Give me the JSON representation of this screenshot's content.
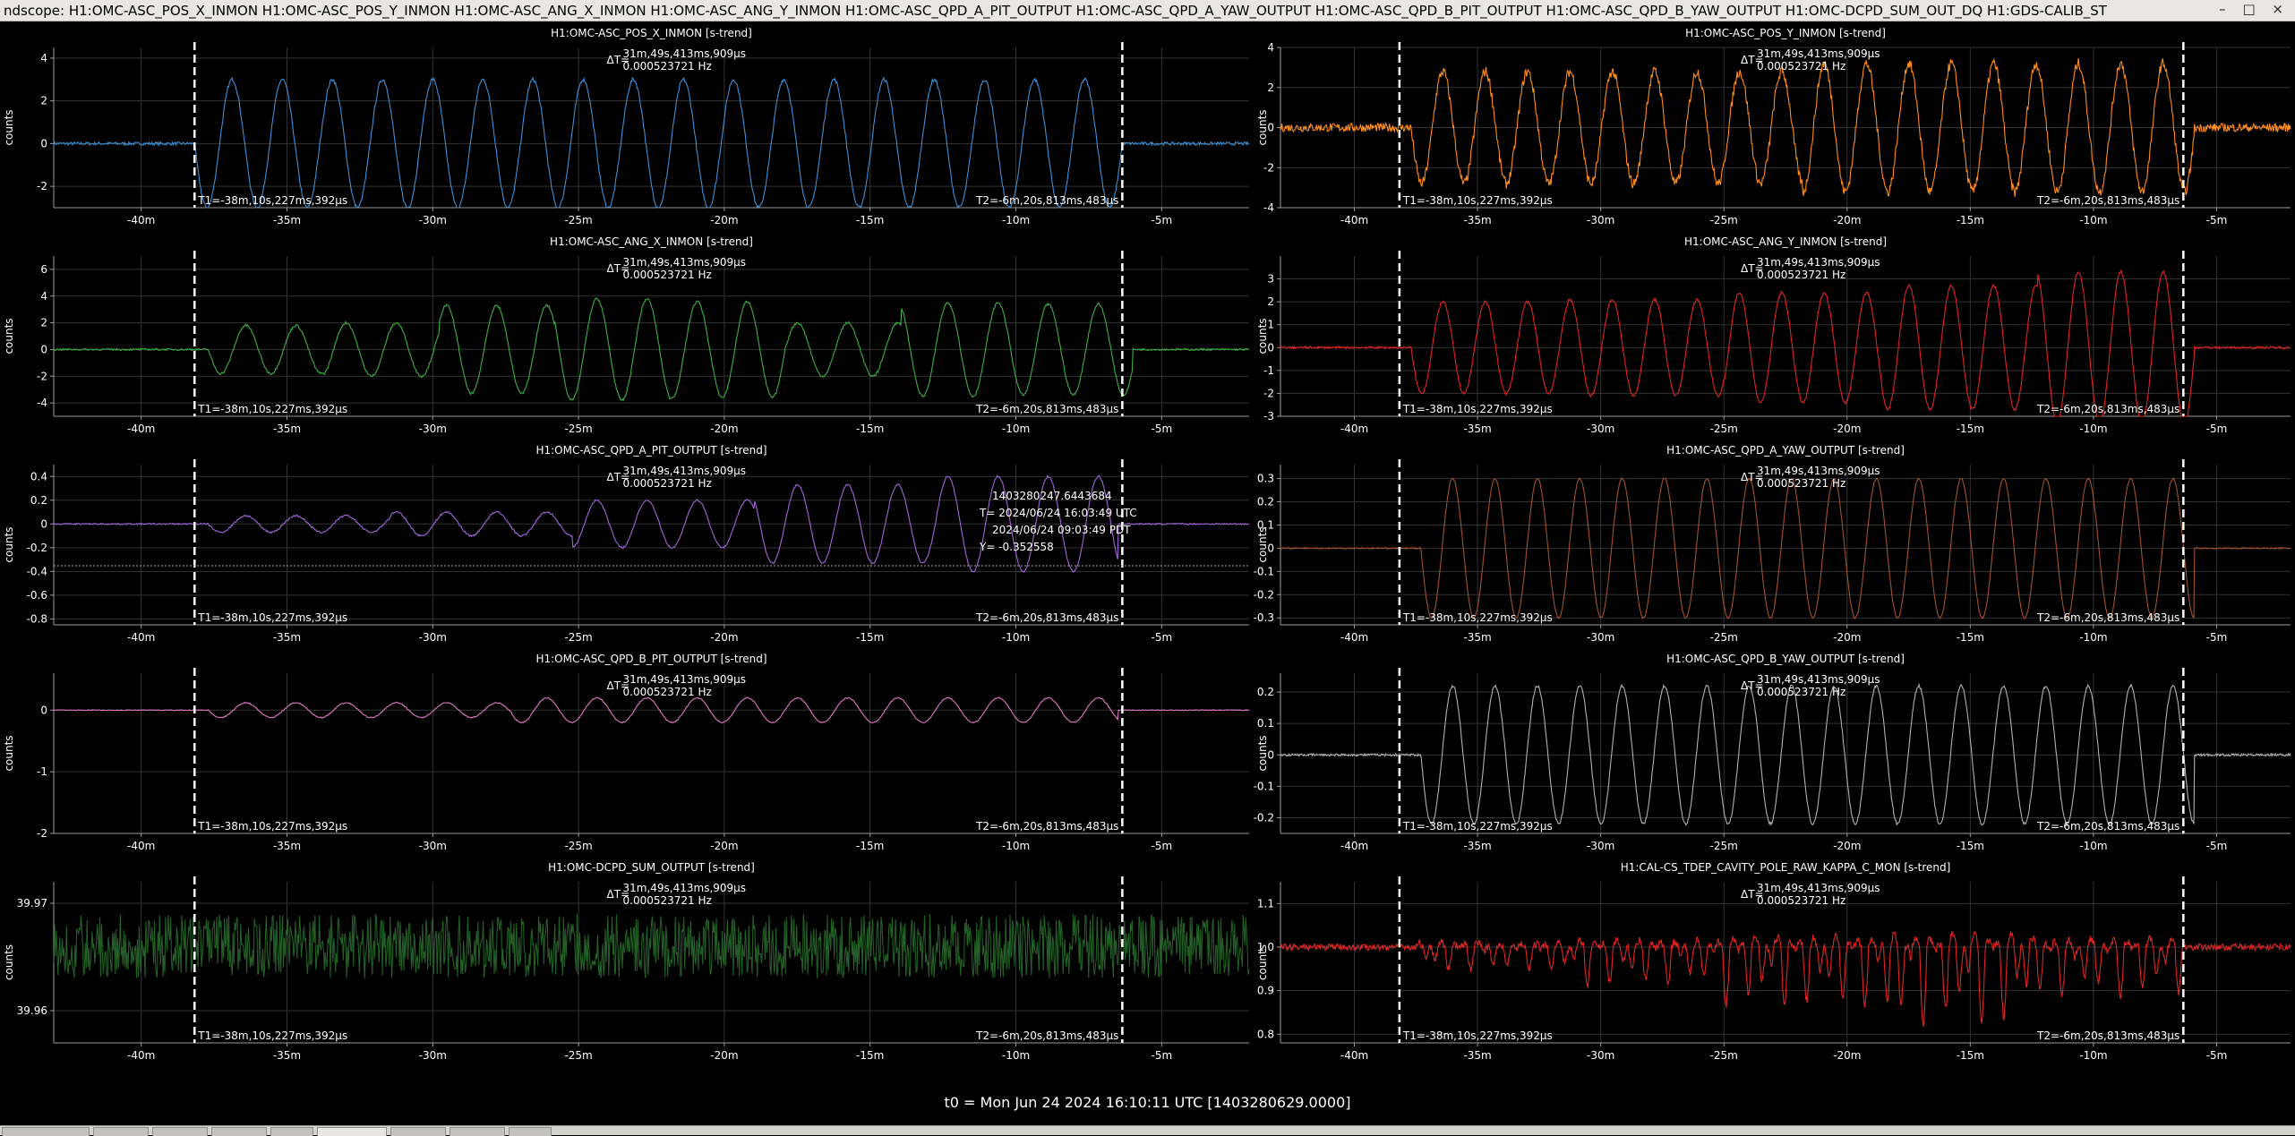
{
  "window": {
    "title": "ndscope: H1:OMC-ASC_POS_X_INMON H1:OMC-ASC_POS_Y_INMON H1:OMC-ASC_ANG_X_INMON H1:OMC-ASC_ANG_Y_INMON H1:OMC-ASC_QPD_A_PIT_OUTPUT H1:OMC-ASC_QPD_A_YAW_OUTPUT H1:OMC-ASC_QPD_B_PIT_OUTPUT H1:OMC-ASC_QPD_B_YAW_OUTPUT H1:OMC-DCPD_SUM_OUT_DQ H1:GDS-CALIB_ST",
    "buttons": [
      "–",
      "□",
      "×"
    ]
  },
  "common": {
    "ylabel": "counts",
    "t1_label": "T1=-38m,10s,227ms,392µs",
    "t2_label": "T2=-6m,20s,813ms,483µs",
    "dt_prefix": "ΔT=",
    "dt_value": "31m,49s,413ms,909µs",
    "dt_freq": "0.000523721 Hz",
    "x_ticks": [
      -40,
      -35,
      -30,
      -25,
      -20,
      -15,
      -10,
      -5
    ],
    "x_tick_suffix": "m",
    "t1_min": -38.17,
    "t2_min": -6.35
  },
  "cursor": {
    "gps": "1403280247.6443684",
    "utc": "T= 2024/06/24 16:03:49 UTC",
    "pdt": "2024/06/24 09:03:49 PDT",
    "y": "Y= -0.352558",
    "y_value": -0.352558
  },
  "footer": "t0 = Mon Jun 24 2024 16:10:11 UTC [1403280629.0000]",
  "colors": {
    "background": "#000000",
    "grid": "#333333",
    "axis": "#9a9a9a",
    "cursor": "#ffffff"
  },
  "chart_data": [
    {
      "type": "line",
      "title": "H1:OMC-ASC_POS_X_INMON [s-trend]",
      "ylabel": "counts",
      "xlim": [
        -43,
        -2
      ],
      "ylim": [
        -3,
        4.5
      ],
      "y_ticks": [
        -2,
        0,
        2,
        4
      ],
      "series": [
        {
          "color": "#3d8fd6",
          "flat_before": -38.17,
          "flat_after": -6.35,
          "baseline": 0,
          "period_min": 1.72,
          "amplitudes": [
            3.0,
            3.0
          ],
          "offset": 0,
          "noise": 0.12
        }
      ]
    },
    {
      "type": "line",
      "title": "H1:OMC-ASC_POS_Y_INMON [s-trend]",
      "ylabel": "counts",
      "xlim": [
        -43,
        -2
      ],
      "ylim": [
        -4,
        4
      ],
      "y_ticks": [
        -4,
        -2,
        0,
        2,
        4
      ],
      "series": [
        {
          "color": "#ff8c1a",
          "flat_before": -37.7,
          "flat_after": -5.9,
          "baseline": 0,
          "period_min": 1.72,
          "amplitudes": [
            2.8,
            3.2
          ],
          "offset": 0,
          "noise": 0.35
        }
      ]
    },
    {
      "type": "line",
      "title": "H1:OMC-ASC_ANG_X_INMON [s-trend]",
      "ylabel": "counts",
      "xlim": [
        -43,
        -2
      ],
      "ylim": [
        -5,
        7
      ],
      "y_ticks": [
        -4,
        -2,
        0,
        2,
        4,
        6
      ],
      "series": [
        {
          "color": "#3cb043",
          "flat_before": -37.7,
          "flat_after": -6.0,
          "baseline": 0,
          "period_min": 1.72,
          "amplitudes": [
            1.8,
            2.0,
            3.3,
            3.8,
            3.6,
            2.0,
            3.5,
            3.4
          ],
          "offset": 0,
          "noise": 0.12
        }
      ]
    },
    {
      "type": "line",
      "title": "H1:OMC-ASC_ANG_Y_INMON [s-trend]",
      "ylabel": "counts",
      "xlim": [
        -43,
        -2
      ],
      "ylim": [
        -3,
        4
      ],
      "y_ticks": [
        -3,
        -2,
        -1,
        0,
        1,
        2,
        3
      ],
      "series": [
        {
          "color": "#e02424",
          "flat_before": -37.7,
          "flat_after": -5.9,
          "baseline": 0,
          "period_min": 1.72,
          "amplitudes": [
            2.0,
            2.1,
            2.4,
            2.7,
            3.3
          ],
          "offset": 0,
          "noise": 0.08
        }
      ]
    },
    {
      "type": "line",
      "title": "H1:OMC-ASC_QPD_A_PIT_OUTPUT [s-trend]",
      "ylabel": "counts",
      "xlim": [
        -43,
        -2
      ],
      "ylim": [
        -0.85,
        0.5
      ],
      "y_ticks": [
        -0.8,
        -0.6,
        -0.4,
        -0.2,
        0,
        0.2,
        0.4
      ],
      "series": [
        {
          "color": "#a066d9",
          "flat_before": -37.7,
          "flat_after": -6.5,
          "baseline": 0,
          "period_min": 1.72,
          "amplitudes": [
            0.07,
            0.1,
            0.2,
            0.33,
            0.4
          ],
          "offset": 0,
          "noise": 0.01
        }
      ]
    },
    {
      "type": "line",
      "title": "H1:OMC-ASC_QPD_A_YAW_OUTPUT [s-trend]",
      "ylabel": "counts",
      "xlim": [
        -43,
        -2
      ],
      "ylim": [
        -0.33,
        0.36
      ],
      "y_ticks": [
        -0.3,
        -0.2,
        -0.1,
        0,
        0.1,
        0.2,
        0.3
      ],
      "series": [
        {
          "color": "#a0522d",
          "flat_before": -37.3,
          "flat_after": -5.9,
          "baseline": 0,
          "period_min": 1.72,
          "amplitudes": [
            0.3,
            0.3
          ],
          "offset": 0,
          "noise": 0.005
        }
      ]
    },
    {
      "type": "line",
      "title": "H1:OMC-ASC_QPD_B_PIT_OUTPUT [s-trend]",
      "ylabel": "counts",
      "xlim": [
        -43,
        -2
      ],
      "ylim": [
        -2,
        0.6
      ],
      "y_ticks": [
        -2,
        -1,
        0
      ],
      "series": [
        {
          "color": "#e377c2",
          "flat_before": -37.7,
          "flat_after": -6.5,
          "baseline": 0,
          "period_min": 1.72,
          "amplitudes": [
            0.12,
            0.2,
            0.2
          ],
          "offset": 0,
          "noise": 0.01
        }
      ]
    },
    {
      "type": "line",
      "title": "H1:OMC-ASC_QPD_B_YAW_OUTPUT [s-trend]",
      "ylabel": "counts",
      "xlim": [
        -43,
        -2
      ],
      "ylim": [
        -0.25,
        0.26
      ],
      "y_ticks": [
        -0.2,
        -0.1,
        0,
        0.1,
        0.2
      ],
      "series": [
        {
          "color": "#b0b0b0",
          "flat_before": -37.3,
          "flat_after": -5.9,
          "baseline": 0,
          "period_min": 1.72,
          "amplitudes": [
            0.22,
            0.22
          ],
          "offset": 0,
          "noise": 0.006
        }
      ]
    },
    {
      "type": "line",
      "title": "H1:OMC-DCPD_SUM_OUTPUT [s-trend]",
      "ylabel": "counts",
      "xlim": [
        -43,
        -2
      ],
      "ylim": [
        39.957,
        39.972
      ],
      "y_ticks": [
        39.96,
        39.97
      ],
      "y_decimals": 2,
      "series": [
        {
          "color": "#2e7d32",
          "flat_before": -100,
          "flat_after": 100,
          "baseline": 39.966,
          "period_min": 1.72,
          "amplitudes": [
            0,
            0
          ],
          "offset": 39.966,
          "noise": 0.004,
          "band": true
        }
      ]
    },
    {
      "type": "line",
      "title": "H1:CAL-CS_TDEP_CAVITY_POLE_RAW_KAPPA_C_MON [s-trend]",
      "ylabel": "counts",
      "xlim": [
        -43,
        -2
      ],
      "ylim": [
        0.78,
        1.15
      ],
      "y_ticks": [
        0.8,
        0.9,
        1.0,
        1.1
      ],
      "y_decimals": 1,
      "series": [
        {
          "color": "#e02424",
          "flat_before": -37.5,
          "flat_after": -6.3,
          "baseline": 1.0,
          "period_min": 0.8,
          "amplitudes": [
            0.05,
            0.08,
            0.12,
            0.16,
            0.1
          ],
          "offset": 1.0,
          "noise": 0.012,
          "dips": true
        }
      ]
    }
  ]
}
